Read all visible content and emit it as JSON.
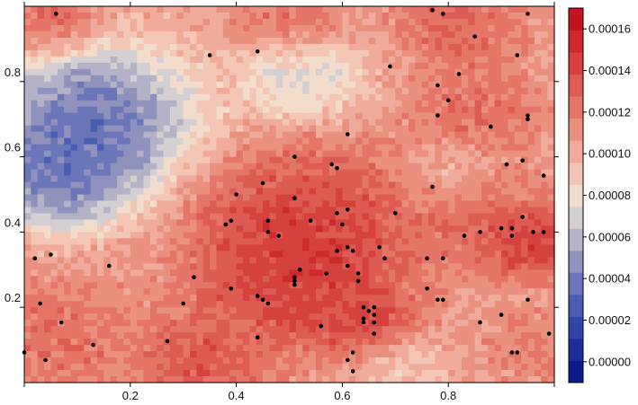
{
  "chart_data": {
    "type": "heatmap",
    "title": "",
    "xlabel": "",
    "ylabel": "",
    "xlim": [
      0,
      1
    ],
    "ylim": [
      0,
      1
    ],
    "x_ticks": [
      0.2,
      0.4,
      0.6,
      0.8
    ],
    "x_tick_labels": [
      "0.2",
      "0.4",
      "0.6",
      "0.8"
    ],
    "y_ticks": [
      0.2,
      0.4,
      0.6,
      0.8
    ],
    "y_tick_labels": [
      "0.2",
      "0.4",
      "0.6",
      "0.8"
    ],
    "colorbar": {
      "range": [
        -1e-05,
        0.00017
      ],
      "ticks": [
        0.0,
        2e-05,
        4e-05,
        6e-05,
        8e-05,
        0.0001,
        0.00012,
        0.00014,
        0.00016
      ],
      "tick_labels": [
        "0.00000",
        "0.00002",
        "0.00004",
        "0.00006",
        "0.00008",
        "0.00010",
        "0.00012",
        "0.00014",
        "0.00016"
      ],
      "colors": [
        "#0c1a8c",
        "#1b2e9c",
        "#2f45a8",
        "#4a5db3",
        "#6a76b8",
        "#8e92bd",
        "#b3b2c6",
        "#d4cfd2",
        "#f2dccb",
        "#f3c6b5",
        "#f0ab9b",
        "#ea907f",
        "#e47567",
        "#dc5b52",
        "#d5413e",
        "#cc2a2c",
        "#c1141e"
      ]
    },
    "field_features": [
      {
        "x": 0.13,
        "y": 0.7,
        "value": 1.5e-06,
        "spread": 0.11
      },
      {
        "x": 0.07,
        "y": 0.55,
        "value": 1e-05,
        "spread": 0.08
      },
      {
        "x": 0.52,
        "y": 0.82,
        "value": 5e-05,
        "spread": 0.07
      },
      {
        "x": 0.53,
        "y": 0.42,
        "value": 0.000162,
        "spread": 0.12
      },
      {
        "x": 0.5,
        "y": 0.27,
        "value": 0.00016,
        "spread": 0.1
      },
      {
        "x": 0.64,
        "y": 0.16,
        "value": 0.000155,
        "spread": 0.06
      },
      {
        "x": 0.95,
        "y": 0.38,
        "value": 0.000165,
        "spread": 0.06
      },
      {
        "x": 0.85,
        "y": 0.72,
        "value": 0.000135,
        "spread": 0.07
      },
      {
        "x": 0.83,
        "y": 0.45,
        "value": 0.000135,
        "spread": 0.08
      },
      {
        "x": 0.06,
        "y": 0.12,
        "value": 0.000135,
        "spread": 0.09
      },
      {
        "x": 0.33,
        "y": 0.05,
        "value": 0.00015,
        "spread": 0.07
      },
      {
        "x": 0.5,
        "y": 0.95,
        "value": 0.00014,
        "spread": 0.06
      },
      {
        "x": 0.82,
        "y": 0.95,
        "value": 0.00014,
        "spread": 0.07
      },
      {
        "x": 0.05,
        "y": 0.96,
        "value": 0.00014,
        "spread": 0.05
      },
      {
        "x": 0.8,
        "y": 0.55,
        "value": 8.5e-05,
        "spread": 0.05
      },
      {
        "x": 0.71,
        "y": 0.04,
        "value": 8e-05,
        "spread": 0.05
      },
      {
        "x": 0.97,
        "y": 0.1,
        "value": 0.000125,
        "spread": 0.06
      }
    ],
    "points": [
      {
        "x": 0.06,
        "y": 0.98
      },
      {
        "x": 0.35,
        "y": 0.87
      },
      {
        "x": 0.44,
        "y": 0.88
      },
      {
        "x": 0.69,
        "y": 0.84
      },
      {
        "x": 0.77,
        "y": 0.99
      },
      {
        "x": 0.79,
        "y": 0.98
      },
      {
        "x": 0.85,
        "y": 0.92
      },
      {
        "x": 0.95,
        "y": 0.98
      },
      {
        "x": 0.93,
        "y": 0.87
      },
      {
        "x": 0.82,
        "y": 0.82
      },
      {
        "x": 0.78,
        "y": 0.79
      },
      {
        "x": 0.8,
        "y": 0.75
      },
      {
        "x": 0.78,
        "y": 0.71
      },
      {
        "x": 0.95,
        "y": 0.71
      },
      {
        "x": 0.95,
        "y": 0.7
      },
      {
        "x": 0.88,
        "y": 0.68
      },
      {
        "x": 0.61,
        "y": 0.66
      },
      {
        "x": 0.51,
        "y": 0.6
      },
      {
        "x": 0.58,
        "y": 0.58
      },
      {
        "x": 0.59,
        "y": 0.57
      },
      {
        "x": 0.91,
        "y": 0.58
      },
      {
        "x": 0.94,
        "y": 0.59
      },
      {
        "x": 0.98,
        "y": 0.55
      },
      {
        "x": 0.45,
        "y": 0.53
      },
      {
        "x": 0.77,
        "y": 0.52
      },
      {
        "x": 0.4,
        "y": 0.5
      },
      {
        "x": 0.51,
        "y": 0.49
      },
      {
        "x": 0.59,
        "y": 0.45
      },
      {
        "x": 0.61,
        "y": 0.46
      },
      {
        "x": 0.7,
        "y": 0.45
      },
      {
        "x": 0.38,
        "y": 0.42
      },
      {
        "x": 0.39,
        "y": 0.43
      },
      {
        "x": 0.46,
        "y": 0.43
      },
      {
        "x": 0.54,
        "y": 0.43
      },
      {
        "x": 0.6,
        "y": 0.42
      },
      {
        "x": 0.46,
        "y": 0.4
      },
      {
        "x": 0.48,
        "y": 0.39
      },
      {
        "x": 0.83,
        "y": 0.39
      },
      {
        "x": 0.86,
        "y": 0.4
      },
      {
        "x": 0.9,
        "y": 0.41
      },
      {
        "x": 0.92,
        "y": 0.41
      },
      {
        "x": 0.92,
        "y": 0.39
      },
      {
        "x": 0.94,
        "y": 0.44
      },
      {
        "x": 0.96,
        "y": 0.4
      },
      {
        "x": 0.98,
        "y": 0.4
      },
      {
        "x": 0.02,
        "y": 0.33
      },
      {
        "x": 0.05,
        "y": 0.34
      },
      {
        "x": 0.16,
        "y": 0.31
      },
      {
        "x": 0.59,
        "y": 0.35
      },
      {
        "x": 0.61,
        "y": 0.36
      },
      {
        "x": 0.62,
        "y": 0.35
      },
      {
        "x": 0.67,
        "y": 0.36
      },
      {
        "x": 0.68,
        "y": 0.33
      },
      {
        "x": 0.61,
        "y": 0.31
      },
      {
        "x": 0.63,
        "y": 0.29
      },
      {
        "x": 0.76,
        "y": 0.33
      },
      {
        "x": 0.79,
        "y": 0.33
      },
      {
        "x": 0.52,
        "y": 0.3
      },
      {
        "x": 0.51,
        "y": 0.28
      },
      {
        "x": 0.51,
        "y": 0.27
      },
      {
        "x": 0.51,
        "y": 0.26
      },
      {
        "x": 0.57,
        "y": 0.29
      },
      {
        "x": 0.63,
        "y": 0.27
      },
      {
        "x": 0.32,
        "y": 0.28
      },
      {
        "x": 0.39,
        "y": 0.25
      },
      {
        "x": 0.44,
        "y": 0.23
      },
      {
        "x": 0.45,
        "y": 0.22
      },
      {
        "x": 0.46,
        "y": 0.21
      },
      {
        "x": 0.76,
        "y": 0.25
      },
      {
        "x": 0.78,
        "y": 0.22
      },
      {
        "x": 0.79,
        "y": 0.22
      },
      {
        "x": 0.95,
        "y": 0.22
      },
      {
        "x": 0.03,
        "y": 0.21
      },
      {
        "x": 0.3,
        "y": 0.21
      },
      {
        "x": 0.64,
        "y": 0.2
      },
      {
        "x": 0.65,
        "y": 0.19
      },
      {
        "x": 0.66,
        "y": 0.2
      },
      {
        "x": 0.66,
        "y": 0.18
      },
      {
        "x": 0.64,
        "y": 0.17
      },
      {
        "x": 0.66,
        "y": 0.16
      },
      {
        "x": 0.64,
        "y": 0.16
      },
      {
        "x": 0.66,
        "y": 0.13
      },
      {
        "x": 0.56,
        "y": 0.15
      },
      {
        "x": 0.9,
        "y": 0.18
      },
      {
        "x": 0.86,
        "y": 0.16
      },
      {
        "x": 0.07,
        "y": 0.16
      },
      {
        "x": 0.44,
        "y": 0.12
      },
      {
        "x": 0.27,
        "y": 0.11
      },
      {
        "x": 0.13,
        "y": 0.1
      },
      {
        "x": 0.99,
        "y": 0.13
      },
      {
        "x": 0.0,
        "y": 0.08
      },
      {
        "x": 0.62,
        "y": 0.08
      },
      {
        "x": 0.92,
        "y": 0.08
      },
      {
        "x": 0.93,
        "y": 0.08
      },
      {
        "x": 0.04,
        "y": 0.06
      },
      {
        "x": 0.61,
        "y": 0.06
      },
      {
        "x": 0.62,
        "y": 0.03
      }
    ]
  }
}
